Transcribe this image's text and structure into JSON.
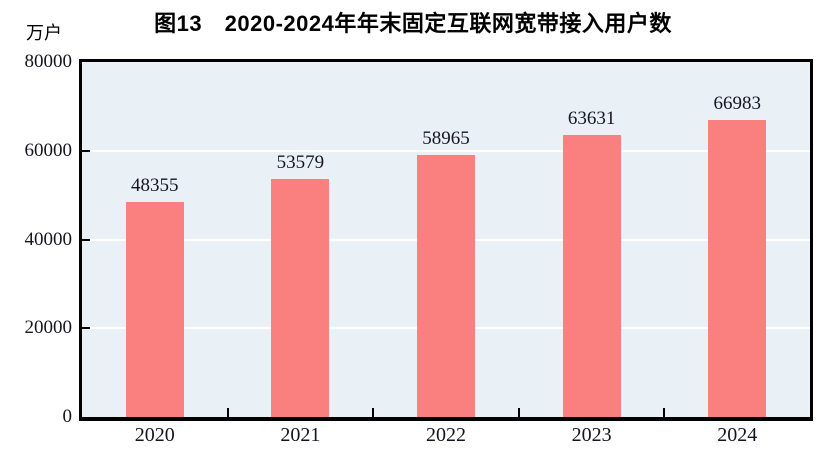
{
  "figure": {
    "title": "图13　2020-2024年年末固定互联网宽带接入用户数",
    "unit_label": "万户"
  },
  "chart_data": {
    "type": "bar",
    "title": "图13　2020-2024年年末固定互联网宽带接入用户数",
    "ylabel": "万户",
    "xlabel": "",
    "categories": [
      "2020",
      "2021",
      "2022",
      "2023",
      "2024"
    ],
    "values": [
      48355,
      53579,
      58965,
      63631,
      66983
    ],
    "data_labels": [
      48355,
      53579,
      58965,
      63631,
      66983
    ],
    "ylim": [
      0,
      80000
    ],
    "yticks": [
      0,
      20000,
      40000,
      60000,
      80000
    ],
    "gridlines": [
      20000,
      40000,
      60000
    ],
    "grid": true,
    "legend_position": "none",
    "colors": {
      "bar": "#fa8080",
      "plot_background": "#eaf1f6",
      "gridline": "#ffffff",
      "axis": "#000000",
      "tick_text": "#15151f",
      "title_text": "#000000"
    }
  }
}
